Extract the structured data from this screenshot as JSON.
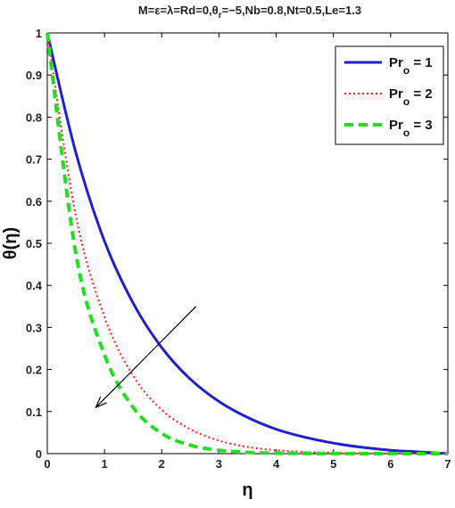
{
  "chart_data": {
    "type": "line",
    "title": "M=ε=λ=Rd=0,θr=−5,Nb=0.8,Nt=0.5,Le=1.3",
    "title_parts": [
      "M=ε=λ=Rd=0,θ",
      "r",
      "=−5,Nb=0.8,Nt=0.5,Le=1.3"
    ],
    "xlabel": "η",
    "ylabel": "θ(η)",
    "xlim": [
      0,
      7
    ],
    "ylim": [
      0,
      1
    ],
    "xticks": [
      "0",
      "1",
      "2",
      "3",
      "4",
      "5",
      "6",
      "7"
    ],
    "yticks": [
      "0",
      "0.1",
      "0.2",
      "0.3",
      "0.4",
      "0.5",
      "0.6",
      "0.7",
      "0.8",
      "0.9",
      "1"
    ],
    "grid": false,
    "legend_position": "top-right",
    "x": [
      0,
      0.5,
      1,
      1.5,
      2,
      2.5,
      3,
      3.5,
      4,
      4.5,
      5,
      5.5,
      6,
      6.5,
      7
    ],
    "series": [
      {
        "legend_main": "Pr",
        "legend_sub": "o",
        "legend_tail": " = 1",
        "color": "#1f1fd0",
        "style": "solid",
        "values": [
          1.0,
          0.715,
          0.505,
          0.358,
          0.252,
          0.177,
          0.124,
          0.086,
          0.058,
          0.039,
          0.025,
          0.015,
          0.008,
          0.004,
          0.0
        ]
      },
      {
        "legend_main": "Pr",
        "legend_sub": "o",
        "legend_tail": " = 2",
        "color": "#ff1a1a",
        "style": "dotted",
        "values": [
          1.0,
          0.565,
          0.325,
          0.185,
          0.104,
          0.058,
          0.031,
          0.016,
          0.008,
          0.004,
          0.002,
          0.001,
          0.0005,
          0.0002,
          0.0
        ]
      },
      {
        "legend_main": "Pr",
        "legend_sub": "o",
        "legend_tail": " = 3",
        "color": "#22dd22",
        "style": "dashed",
        "values": [
          1.0,
          0.475,
          0.235,
          0.11,
          0.048,
          0.02,
          0.008,
          0.003,
          0.001,
          0.0005,
          0.0002,
          0.0,
          0.0,
          0.0,
          0.0
        ]
      }
    ],
    "annotations": [
      {
        "type": "arrow",
        "from": [
          2.6,
          0.35
        ],
        "to": [
          0.85,
          0.11
        ],
        "color": "#000000"
      }
    ]
  }
}
